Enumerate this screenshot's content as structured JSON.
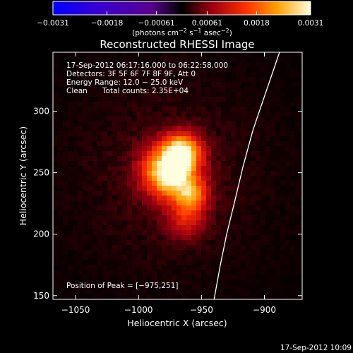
{
  "chart_data": {
    "type": "heatmap",
    "title": "Reconstructed RHESSI Image",
    "xlabel": "Heliocentric X (arcsec)",
    "ylabel": "Heliocentric Y (arcsec)",
    "xlim": [
      -1068,
      -870
    ],
    "ylim": [
      147,
      348
    ],
    "x_ticks": [
      -1050,
      -1000,
      -950,
      -900
    ],
    "x_tick_labels": [
      "−1050",
      "−1000",
      "−950",
      "−900"
    ],
    "y_ticks": [
      150,
      200,
      250,
      300
    ],
    "y_tick_labels": [
      "150",
      "200",
      "250",
      "300"
    ],
    "colorbar": {
      "ticks": [
        -0.0031,
        -0.0018,
        -0.00061,
        0.00061,
        0.0018,
        0.0031
      ],
      "tick_labels": [
        "−0.0031",
        "−0.0018",
        "−0.00061",
        "0.00061",
        "0.0018",
        "0.0031"
      ],
      "unit_label": "(photons cm",
      "unit_sup1": "−2",
      "unit_mid": " s",
      "unit_sup2": "−1",
      "unit_mid2": " asec",
      "unit_sup3": "−2",
      "unit_end": ")",
      "range": [
        -0.0031,
        0.0031
      ]
    },
    "annotations": {
      "time_range": "17-Sep-2012 06:17:16.000 to 06:22:58.000",
      "detectors": "Detectors: 3F 5F 6F 7F 8F 9F, Att 0",
      "energy": "Energy Range: 12.0 − 25.0 keV",
      "method": "Clean",
      "counts": "Total counts: 2.35E+04",
      "peak": "Position of Peak = [−975,251]"
    },
    "peak_position": [
      -975,
      251
    ],
    "sources": [
      {
        "x": -975,
        "y": 251,
        "amplitude": 0.0031,
        "sigma": 14
      },
      {
        "x": -965,
        "y": 268,
        "amplitude": 0.0022,
        "sigma": 10
      },
      {
        "x": -958,
        "y": 232,
        "amplitude": 0.0016,
        "sigma": 9
      },
      {
        "x": -962,
        "y": 212,
        "amplitude": 0.001,
        "sigma": 11
      }
    ],
    "limb": [
      [
        -940,
        147
      ],
      [
        -935,
        175
      ],
      [
        -930,
        200
      ],
      [
        -924,
        225
      ],
      [
        -917,
        255
      ],
      [
        -909,
        285
      ],
      [
        -899,
        315
      ],
      [
        -888,
        348
      ]
    ]
  },
  "footer": {
    "timestamp": "17-Sep-2012 10:09"
  }
}
